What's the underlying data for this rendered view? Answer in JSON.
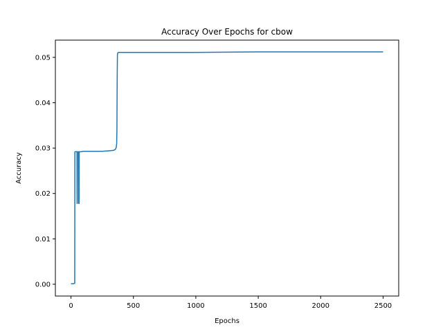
{
  "chart_data": {
    "type": "line",
    "title": "Accuracy Over Epochs for cbow",
    "xlabel": "Epochs",
    "ylabel": "Accuracy",
    "xlim": [
      -125,
      2625
    ],
    "ylim": [
      -0.0026,
      0.0538
    ],
    "xticks": [
      0,
      500,
      1000,
      1500,
      2000,
      2500
    ],
    "yticks": [
      0.0,
      0.01,
      0.02,
      0.03,
      0.04,
      0.05
    ],
    "xtick_labels": [
      "0",
      "500",
      "1000",
      "1500",
      "2000",
      "2500"
    ],
    "ytick_labels": [
      "0.00",
      "0.01",
      "0.02",
      "0.03",
      "0.04",
      "0.05"
    ],
    "grid": false,
    "legend": "none",
    "color": "#1f77b4",
    "series": [
      {
        "x": [
          0,
          10,
          20,
          28,
          30,
          31,
          34,
          38,
          42,
          46,
          48,
          49,
          50,
          51,
          52,
          55,
          58,
          60,
          61,
          62,
          63,
          64,
          65,
          66,
          67,
          70,
          80,
          100,
          150,
          200,
          250,
          300,
          340,
          355,
          362,
          366,
          368,
          370,
          372,
          375,
          380,
          390,
          400,
          500,
          1000,
          1500,
          2000,
          2500
        ],
        "y": [
          0.0001,
          0.0001,
          0.0001,
          0.0002,
          0.0002,
          0.0292,
          0.0292,
          0.0292,
          0.0292,
          0.0292,
          0.0292,
          0.0178,
          0.0178,
          0.0292,
          0.0292,
          0.0292,
          0.0292,
          0.0292,
          0.0178,
          0.0178,
          0.0178,
          0.0178,
          0.0178,
          0.0292,
          0.0292,
          0.0292,
          0.0292,
          0.0293,
          0.0293,
          0.0293,
          0.0293,
          0.0294,
          0.0295,
          0.0297,
          0.0301,
          0.031,
          0.034,
          0.045,
          0.0505,
          0.051,
          0.0511,
          0.0511,
          0.0511,
          0.0511,
          0.0511,
          0.0512,
          0.0512,
          0.0512
        ]
      }
    ]
  }
}
